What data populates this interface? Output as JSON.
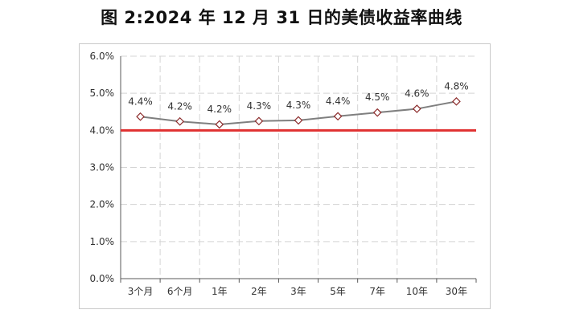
{
  "title": "图 2:2024 年 12 月 31 日的美债收益率曲线",
  "chart_data": {
    "type": "line",
    "title": "图 2:2024 年 12 月 31 日的美债收益率曲线",
    "categories": [
      "3个月",
      "6个月",
      "1年",
      "2年",
      "3年",
      "5年",
      "7年",
      "10年",
      "30年"
    ],
    "series": [
      {
        "values": [
          4.37,
          4.24,
          4.16,
          4.25,
          4.27,
          4.38,
          4.48,
          4.58,
          4.78
        ],
        "data_labels": [
          "4.4%",
          "4.2%",
          "4.2%",
          "4.3%",
          "4.3%",
          "4.4%",
          "4.5%",
          "4.6%",
          "4.8%"
        ],
        "color": "#7f7f7f",
        "marker": "diamond"
      }
    ],
    "reference_line": {
      "value": 4.0,
      "color": "#e03030"
    },
    "y_ticks": [
      "0.0%",
      "1.0%",
      "2.0%",
      "3.0%",
      "4.0%",
      "5.0%",
      "6.0%"
    ],
    "ylim": [
      0,
      6
    ],
    "y_unit": "%",
    "grid": true,
    "xlabel": "",
    "ylabel": ""
  }
}
